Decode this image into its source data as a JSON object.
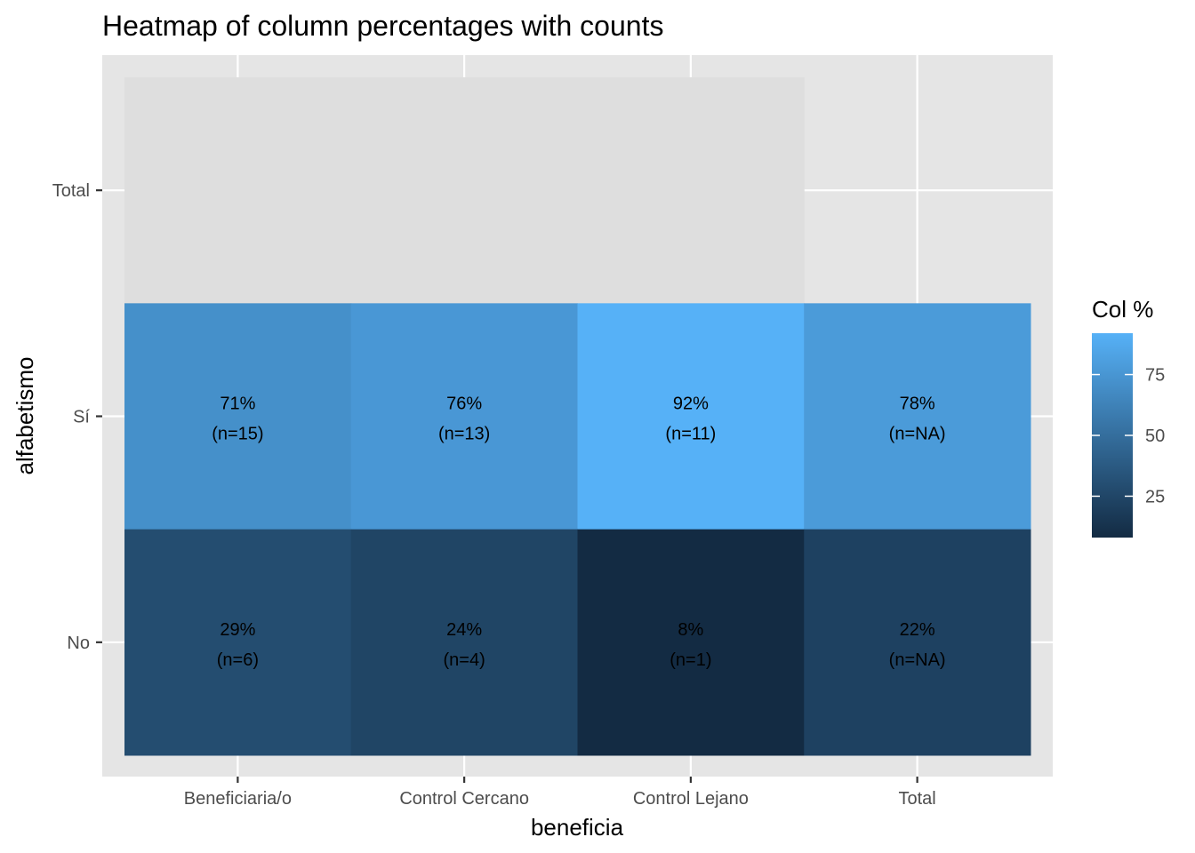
{
  "chart_data": {
    "type": "heatmap",
    "title": "Heatmap of column percentages with counts",
    "xlabel": "beneficia",
    "ylabel": "alfabetismo",
    "x_categories": [
      "Beneficiaria/o",
      "Control Cercano",
      "Control Lejano",
      "Total"
    ],
    "y_categories": [
      "No",
      "Sí",
      "Total"
    ],
    "cells": [
      {
        "x": "Beneficiaria/o",
        "y": "Total",
        "value": null,
        "label_pct": "",
        "label_n": ""
      },
      {
        "x": "Control Cercano",
        "y": "Total",
        "value": null,
        "label_pct": "",
        "label_n": ""
      },
      {
        "x": "Control Lejano",
        "y": "Total",
        "value": null,
        "label_pct": "",
        "label_n": ""
      },
      {
        "x": "Beneficiaria/o",
        "y": "Sí",
        "value": 71,
        "label_pct": "71%",
        "label_n": "(n=15)"
      },
      {
        "x": "Control Cercano",
        "y": "Sí",
        "value": 76,
        "label_pct": "76%",
        "label_n": "(n=13)"
      },
      {
        "x": "Control Lejano",
        "y": "Sí",
        "value": 92,
        "label_pct": "92%",
        "label_n": "(n=11)"
      },
      {
        "x": "Total",
        "y": "Sí",
        "value": 78,
        "label_pct": "78%",
        "label_n": "(n=NA)"
      },
      {
        "x": "Beneficiaria/o",
        "y": "No",
        "value": 29,
        "label_pct": "29%",
        "label_n": "(n=6)"
      },
      {
        "x": "Control Cercano",
        "y": "No",
        "value": 24,
        "label_pct": "24%",
        "label_n": "(n=4)"
      },
      {
        "x": "Control Lejano",
        "y": "No",
        "value": 8,
        "label_pct": "8%",
        "label_n": "(n=1)"
      },
      {
        "x": "Total",
        "y": "No",
        "value": 22,
        "label_pct": "22%",
        "label_n": "(n=NA)"
      }
    ],
    "legend": {
      "title": "Col %",
      "ticks": [
        25,
        50,
        75
      ],
      "range": [
        8,
        92
      ],
      "low_color": "#132B43",
      "high_color": "#56B1F7",
      "na_color": "#DEDEDE"
    },
    "grid": true,
    "legend_placement": "right"
  },
  "colors": {
    "panel_background": "#E5E5E5",
    "grid_line": "#FFFFFF",
    "tick_text": "#4D4D4D"
  }
}
